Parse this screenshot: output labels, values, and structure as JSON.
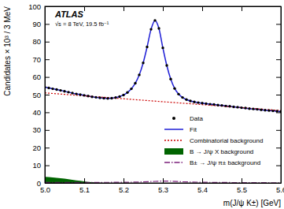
{
  "chart_data": {
    "type": "line",
    "title": "ATLAS",
    "subtitle": "√s = 8 TeV, 19.5 fb⁻¹",
    "x_label": "m(J/ψ K±) [GeV]",
    "y_label": "Candidates × 10³ / 3 MeV",
    "xlim": [
      5.0,
      5.6
    ],
    "xticks": [
      {
        "value": 5.0,
        "label": "5.0"
      },
      5.1,
      5.2,
      5.3,
      5.4,
      5.5,
      5.6
    ],
    "ylim": [
      0,
      100
    ],
    "yticks": [
      0,
      10,
      20,
      30,
      40,
      50,
      60,
      70,
      80,
      90,
      100
    ],
    "legend": "lower right",
    "series": [
      {
        "name": "Data",
        "type": "scatter",
        "marker": "circle",
        "color": "#000000",
        "x": [
          5.0,
          5.01,
          5.02,
          5.03,
          5.04,
          5.05,
          5.06,
          5.07,
          5.08,
          5.09,
          5.1,
          5.11,
          5.12,
          5.13,
          5.14,
          5.15,
          5.16,
          5.17,
          5.18,
          5.19,
          5.2,
          5.21,
          5.22,
          5.23,
          5.24,
          5.25,
          5.26,
          5.27,
          5.28,
          5.29,
          5.3,
          5.31,
          5.32,
          5.33,
          5.34,
          5.35,
          5.36,
          5.37,
          5.38,
          5.39,
          5.4,
          5.41,
          5.42,
          5.43,
          5.44,
          5.45,
          5.46,
          5.47,
          5.48,
          5.49,
          5.5,
          5.51,
          5.52,
          5.53,
          5.54,
          5.55,
          5.56,
          5.57,
          5.58,
          5.59,
          5.6
        ],
        "values": [
          54.2,
          53.8,
          53.3,
          52.9,
          52.4,
          51.9,
          51.4,
          50.9,
          50.4,
          50.0,
          49.6,
          49.2,
          48.8,
          48.5,
          48.2,
          48.0,
          47.9,
          48.0,
          48.3,
          48.9,
          49.8,
          51.2,
          53.3,
          56.5,
          61.2,
          68.0,
          77.0,
          87.0,
          92.0,
          87.5,
          76.5,
          66.5,
          58.8,
          53.5,
          50.3,
          48.4,
          47.2,
          46.4,
          45.9,
          45.5,
          45.2,
          44.9,
          44.6,
          44.4,
          44.1,
          43.9,
          43.6,
          43.4,
          43.1,
          42.9,
          42.6,
          42.4,
          42.1,
          41.9,
          41.7,
          41.4,
          41.2,
          41.0,
          40.8,
          40.6,
          40.4
        ]
      },
      {
        "name": "Fit",
        "type": "line",
        "line_style": "solid",
        "color": "#1f1fd6",
        "x": [
          5.0,
          5.02,
          5.04,
          5.06,
          5.08,
          5.1,
          5.12,
          5.14,
          5.16,
          5.18,
          5.2,
          5.21,
          5.22,
          5.23,
          5.24,
          5.25,
          5.26,
          5.27,
          5.28,
          5.29,
          5.3,
          5.31,
          5.32,
          5.33,
          5.34,
          5.35,
          5.36,
          5.38,
          5.4,
          5.42,
          5.44,
          5.46,
          5.48,
          5.5,
          5.52,
          5.54,
          5.56,
          5.58,
          5.6
        ],
        "values": [
          54.2,
          53.3,
          52.4,
          51.4,
          50.4,
          49.6,
          48.8,
          48.2,
          47.9,
          48.3,
          49.8,
          51.2,
          53.3,
          56.5,
          61.2,
          68.0,
          77.0,
          87.0,
          92.0,
          87.5,
          76.5,
          66.5,
          58.8,
          53.5,
          50.3,
          48.4,
          47.2,
          45.9,
          45.2,
          44.6,
          44.1,
          43.6,
          43.1,
          42.6,
          42.1,
          41.7,
          41.2,
          40.8,
          40.4
        ]
      },
      {
        "name": "Combinatorial background",
        "type": "line",
        "line_style": "dotted",
        "color": "#cc0000",
        "x": [
          5.0,
          5.3,
          5.6
        ],
        "values": [
          51,
          46,
          41
        ]
      },
      {
        "name": "B → J/ψ X background",
        "type": "area",
        "color": "#006400",
        "x": [
          5.0,
          5.01,
          5.02,
          5.03,
          5.04,
          5.05,
          5.06,
          5.07,
          5.08,
          5.09,
          5.1,
          5.11,
          5.12,
          5.13,
          5.14,
          5.15,
          5.16
        ],
        "values": [
          3.5,
          3.3,
          3.1,
          2.9,
          2.7,
          2.4,
          2.1,
          1.8,
          1.5,
          1.2,
          0.9,
          0.6,
          0.4,
          0.2,
          0.1,
          0.05,
          0
        ]
      },
      {
        "name": "B± → J/ψ π± background",
        "type": "line",
        "line_style": "dashdot",
        "color": "#7b1f7b",
        "x": [
          5.0,
          5.1,
          5.2,
          5.25,
          5.28,
          5.3,
          5.32,
          5.35,
          5.4,
          5.5,
          5.6
        ],
        "values": [
          0.3,
          0.3,
          0.4,
          0.6,
          0.9,
          1.1,
          1.0,
          0.7,
          0.4,
          0.2,
          0.1
        ]
      }
    ]
  }
}
